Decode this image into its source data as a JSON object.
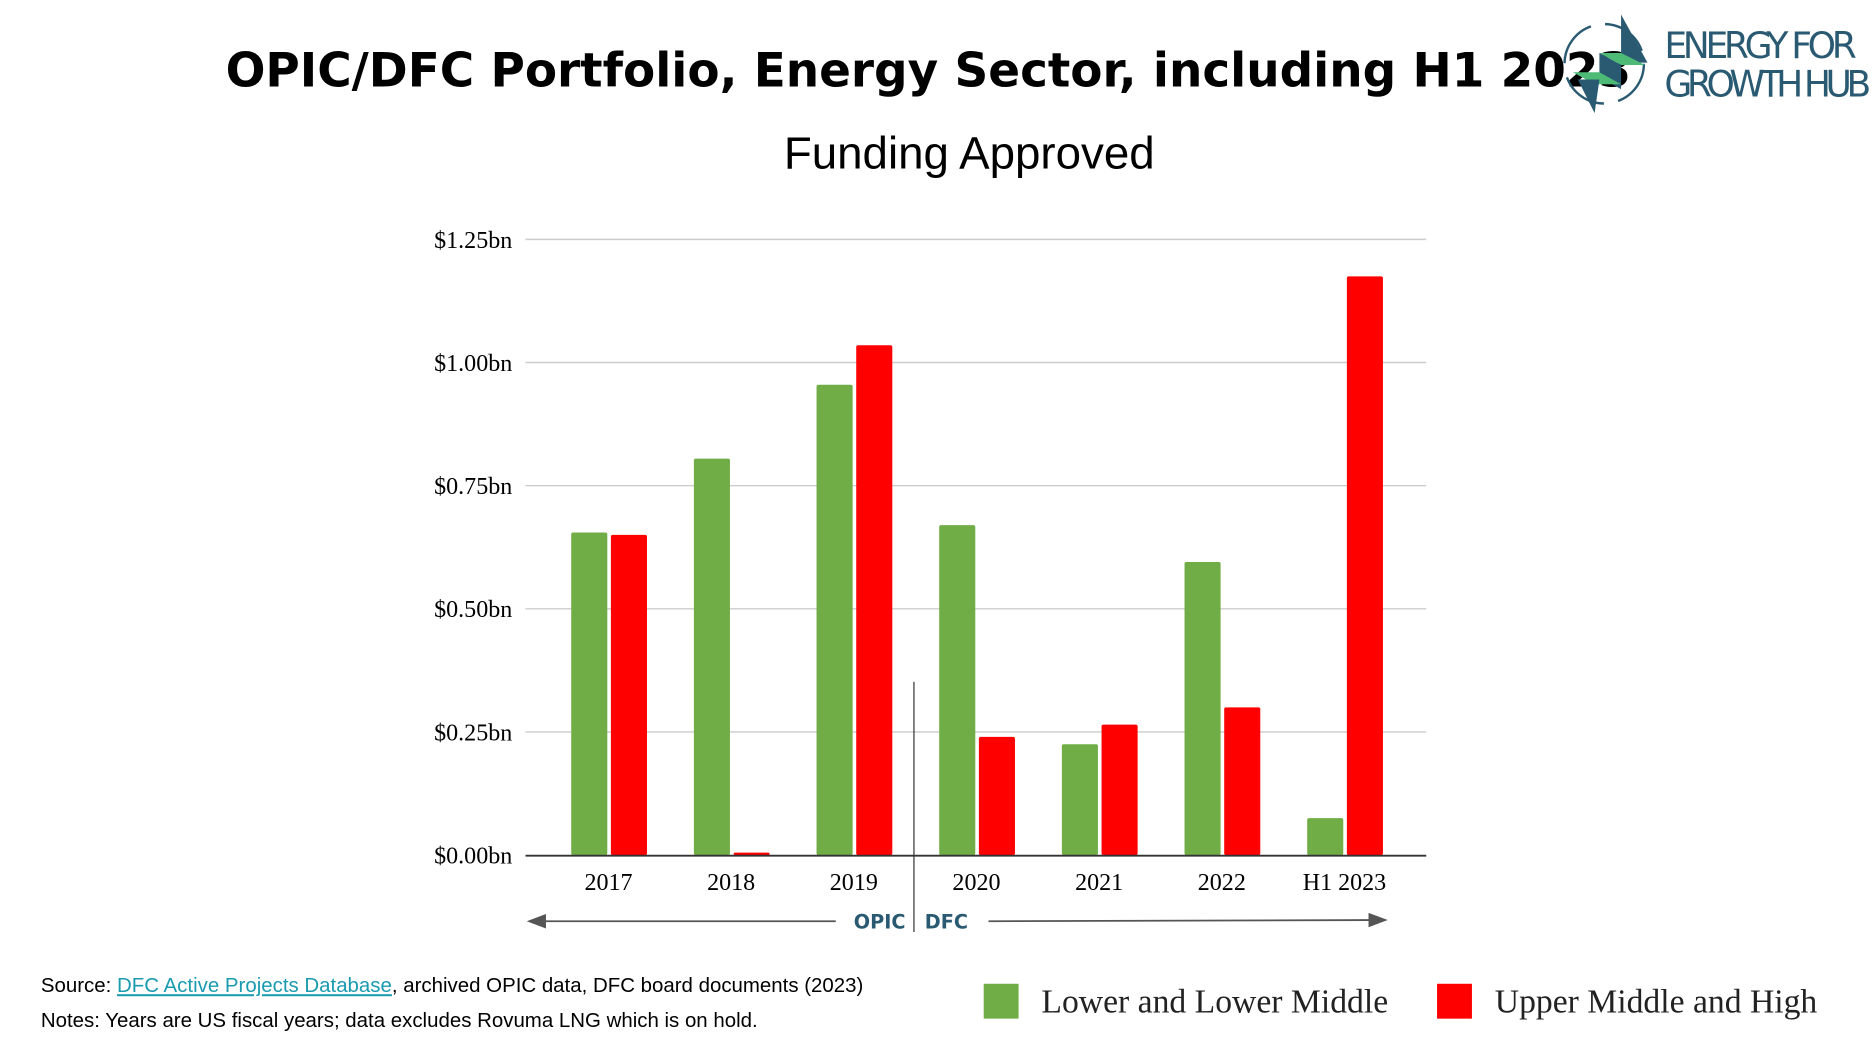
{
  "title": "OPIC/DFC Portfolio, Energy Sector, including H1 2023",
  "logo": {
    "line1": "ENERGY FOR",
    "line2": "GROWTH HUB",
    "colors": {
      "navy": "#2a5a72",
      "green": "#4dbb76"
    }
  },
  "chart_data": {
    "type": "bar",
    "title": "Funding Approved",
    "categories": [
      "2017",
      "2018",
      "2019",
      "2020",
      "2021",
      "2022",
      "H1 2023"
    ],
    "series": [
      {
        "name": "Lower and Lower Middle",
        "color": "#70ad47",
        "values": [
          0.655,
          0.805,
          0.955,
          0.67,
          0.225,
          0.595,
          0.075
        ]
      },
      {
        "name": "Upper Middle and High",
        "color": "#ff0000",
        "values": [
          0.65,
          0.005,
          1.035,
          0.24,
          0.265,
          0.3,
          1.175
        ]
      }
    ],
    "ylim": [
      0,
      1.25
    ],
    "yticks": [
      "$0.00bn",
      "$0.25bn",
      "$0.50bn",
      "$0.75bn",
      "$1.00bn",
      "$1.25bn"
    ],
    "grid": true,
    "legend": "bottom-right",
    "annotations": {
      "left_era": "OPIC",
      "right_era": "DFC"
    }
  },
  "notes": {
    "source_prefix": "Source: ",
    "source_link": "DFC Active Projects Database",
    "source_suffix": ", archived OPIC data, DFC board documents (2023)",
    "notes": "Notes: Years are US fiscal years; data excludes Rovuma LNG which is on hold."
  }
}
